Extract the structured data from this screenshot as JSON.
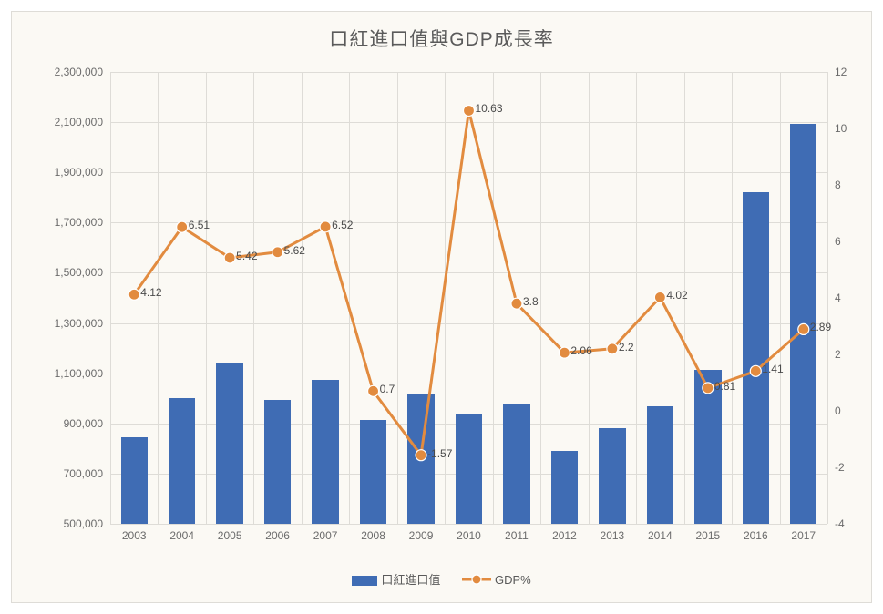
{
  "chart": {
    "type": "bar+line",
    "title": "口紅進口值與GDP成長率",
    "title_fontsize": 21,
    "title_color": "#5a5a5a",
    "background_color": "#fbf9f4",
    "panel_border_color": "#dedcd7",
    "grid_color": "#dedcd7",
    "label_fontsize": 12,
    "label_color": "#6b6b6b",
    "data_label_fontsize": 12,
    "data_label_color": "#4b4b4b",
    "categories": [
      "2003",
      "2004",
      "2005",
      "2006",
      "2007",
      "2008",
      "2009",
      "2010",
      "2011",
      "2012",
      "2013",
      "2014",
      "2015",
      "2016",
      "2017"
    ],
    "bars": {
      "name": "口紅進口值",
      "color": "#3f6cb4",
      "axis": "left",
      "bar_width_ratio": 0.56,
      "values": [
        845000,
        1000000,
        1140000,
        995000,
        1075000,
        915000,
        1015000,
        935000,
        975000,
        790000,
        880000,
        970000,
        1115000,
        1820000,
        2095000
      ]
    },
    "line": {
      "name": "GDP%",
      "color": "#e28b3f",
      "axis": "right",
      "line_width": 3,
      "marker": "circle",
      "marker_size": 6,
      "marker_fill": "#e28b3f",
      "marker_border": "#ffffff",
      "values": [
        4.12,
        6.51,
        5.42,
        5.62,
        6.52,
        0.7,
        -1.57,
        10.63,
        3.8,
        2.06,
        2.2,
        4.02,
        0.81,
        1.41,
        2.89
      ],
      "data_labels": [
        "4.12",
        "6.51",
        "5.42",
        "5.62",
        "6.52",
        "0.7",
        "-1.57",
        "10.63",
        "3.8",
        "2.06",
        "2.2",
        "4.02",
        "0.81",
        "1.41",
        "2.89"
      ]
    },
    "y_left": {
      "min": 500000,
      "max": 2300000,
      "tick_step": 200000,
      "ticks": [
        500000,
        700000,
        900000,
        1100000,
        1300000,
        1500000,
        1700000,
        1900000,
        2100000,
        2300000
      ],
      "tick_labels": [
        "500,000",
        "700,000",
        "900,000",
        "1,100,000",
        "1,300,000",
        "1,500,000",
        "1,700,000",
        "1,900,000",
        "2,100,000",
        "2,300,000"
      ]
    },
    "y_right": {
      "min": -4,
      "max": 12,
      "tick_step": 2,
      "ticks": [
        -4,
        -2,
        0,
        2,
        4,
        6,
        8,
        10,
        12
      ],
      "tick_labels": [
        "-4",
        "-2",
        "0",
        "2",
        "4",
        "6",
        "8",
        "10",
        "12"
      ]
    },
    "legend": {
      "items": [
        "口紅進口值",
        "GDP%"
      ],
      "position": "bottom-center"
    }
  }
}
